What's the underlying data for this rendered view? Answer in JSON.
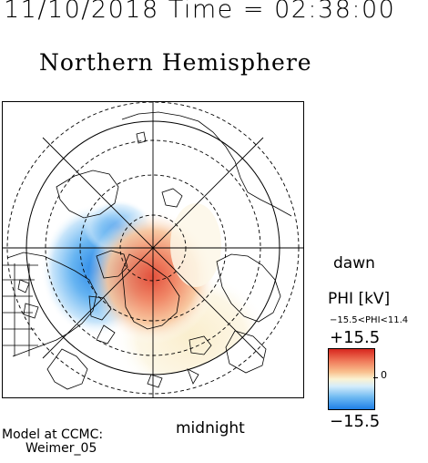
{
  "header": {
    "timestamp": "11/10/2018 Time = 02:38:00",
    "title": "Northern Hemisphere"
  },
  "map": {
    "dawn_label": "dawn",
    "midnight_label": "midnight"
  },
  "colorbar": {
    "title": "PHI [kV]",
    "range_text": "−15.5<PHI<11.4",
    "max_label": "+15.5",
    "min_label": "−15.5",
    "mid_label": "0",
    "colors": {
      "positive": "#d7261e",
      "neutral": "#fbf2d2",
      "negative": "#1f7fe6"
    }
  },
  "footer": {
    "model_line1": "Model at CCMC:",
    "model_line2": "Weimer_05"
  }
}
